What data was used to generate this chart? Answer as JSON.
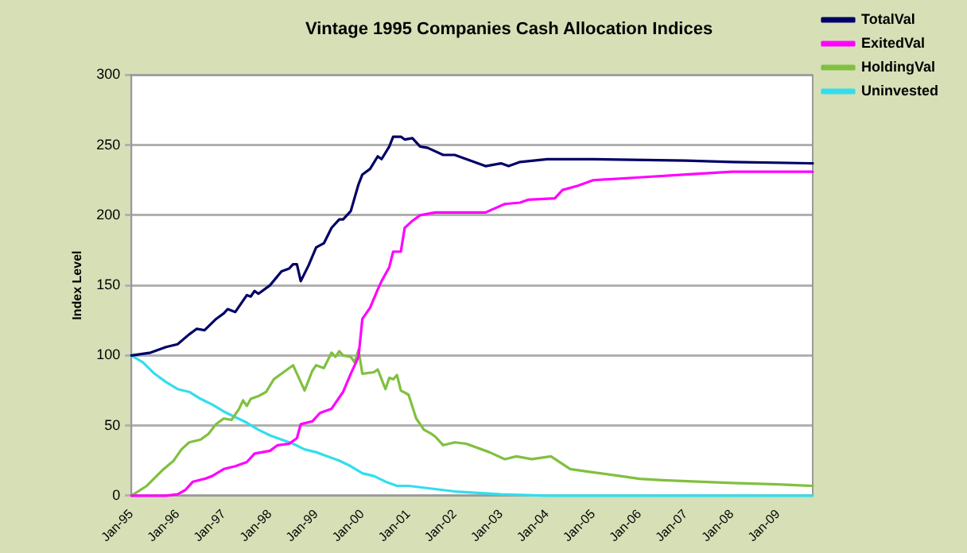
{
  "chart_data": {
    "type": "line",
    "title": "Vintage 1995 Companies Cash Allocation Indices",
    "ylabel": "Index Level",
    "ylim": [
      0,
      300
    ],
    "yticks": [
      0,
      50,
      100,
      150,
      200,
      250,
      300
    ],
    "xlim": [
      "1995-01",
      "2009-10"
    ],
    "xticks": [
      {
        "value": "1995-01",
        "label": "Jan-95"
      },
      {
        "value": "1996-01",
        "label": "Jan-96"
      },
      {
        "value": "1997-01",
        "label": "Jan-97"
      },
      {
        "value": "1998-01",
        "label": "Jan-98"
      },
      {
        "value": "1999-01",
        "label": "Jan-99"
      },
      {
        "value": "2000-01",
        "label": "Jan-00"
      },
      {
        "value": "2001-01",
        "label": "Jan-01"
      },
      {
        "value": "2002-01",
        "label": "Jan-02"
      },
      {
        "value": "2003-01",
        "label": "Jan-03"
      },
      {
        "value": "2004-01",
        "label": "Jan-04"
      },
      {
        "value": "2005-01",
        "label": "Jan-05"
      },
      {
        "value": "2006-01",
        "label": "Jan-06"
      },
      {
        "value": "2007-01",
        "label": "Jan-07"
      },
      {
        "value": "2008-01",
        "label": "Jan-08"
      },
      {
        "value": "2009-01",
        "label": "Jan-09"
      }
    ],
    "grid": "y",
    "legend": "right",
    "marker": "none",
    "line_style": "solid",
    "series": [
      {
        "name": "TotalVal",
        "color": "#000066",
        "x": [
          "1995-01",
          "1995-06",
          "1995-10",
          "1996-01",
          "1996-04",
          "1996-06",
          "1996-08",
          "1996-11",
          "1997-01",
          "1997-02",
          "1997-04",
          "1997-07",
          "1997-08",
          "1997-09",
          "1997-10",
          "1998-01",
          "1998-04",
          "1998-06",
          "1998-07",
          "1998-08",
          "1998-09",
          "1998-11",
          "1999-01",
          "1999-03",
          "1999-05",
          "1999-07",
          "1999-08",
          "1999-10",
          "1999-12",
          "2000-01",
          "2000-03",
          "2000-05",
          "2000-06",
          "2000-08",
          "2000-09",
          "2000-11",
          "2000-12",
          "2001-02",
          "2001-04",
          "2001-06",
          "2001-10",
          "2002-01",
          "2002-04",
          "2002-09",
          "2003-01",
          "2003-03",
          "2003-06",
          "2004-01",
          "2005-01",
          "2007-01",
          "2008-01",
          "2009-10"
        ],
        "values": [
          100,
          102,
          106,
          108,
          115,
          119,
          118,
          126,
          130,
          133,
          131,
          143,
          142,
          146,
          144,
          150,
          160,
          162,
          165,
          165,
          153,
          164,
          177,
          180,
          191,
          197,
          197,
          203,
          222,
          229,
          233,
          242,
          240,
          249,
          256,
          256,
          254,
          255,
          249,
          248,
          243,
          243,
          240,
          235,
          237,
          235,
          238,
          240,
          240,
          239,
          238,
          237
        ]
      },
      {
        "name": "ExitedVal",
        "color": "#ff00ff",
        "x": [
          "1995-01",
          "1995-10",
          "1996-01",
          "1996-03",
          "1996-05",
          "1996-08",
          "1996-10",
          "1997-01",
          "1997-04",
          "1997-07",
          "1997-09",
          "1998-01",
          "1998-03",
          "1998-06",
          "1998-08",
          "1998-09",
          "1998-12",
          "1999-02",
          "1999-05",
          "1999-08",
          "1999-10",
          "1999-12",
          "2000-01",
          "2000-03",
          "2000-05",
          "2000-06",
          "2000-08",
          "2000-09",
          "2000-11",
          "2000-12",
          "2001-02",
          "2001-04",
          "2001-08",
          "2002-01",
          "2002-09",
          "2003-02",
          "2003-06",
          "2003-08",
          "2004-03",
          "2004-05",
          "2004-09",
          "2005-01",
          "2006-01",
          "2007-01",
          "2008-01",
          "2009-10"
        ],
        "values": [
          0,
          0,
          1,
          4,
          10,
          12,
          14,
          19,
          21,
          24,
          30,
          32,
          36,
          37,
          41,
          51,
          53,
          59,
          62,
          74,
          87,
          99,
          126,
          134,
          147,
          153,
          163,
          174,
          174,
          191,
          196,
          200,
          202,
          202,
          202,
          208,
          209,
          211,
          212,
          218,
          221,
          225,
          227,
          229,
          231,
          231
        ]
      },
      {
        "name": "HoldingVal",
        "color": "#80c040",
        "x": [
          "1995-01",
          "1995-05",
          "1995-09",
          "1995-12",
          "1996-02",
          "1996-04",
          "1996-07",
          "1996-09",
          "1996-11",
          "1997-01",
          "1997-03",
          "1997-05",
          "1997-06",
          "1997-07",
          "1997-08",
          "1997-10",
          "1997-12",
          "1998-02",
          "1998-04",
          "1998-06",
          "1998-07",
          "1998-09",
          "1998-10",
          "1998-12",
          "1999-01",
          "1999-03",
          "1999-05",
          "1999-06",
          "1999-07",
          "1999-08",
          "1999-10",
          "1999-11",
          "1999-12",
          "2000-01",
          "2000-04",
          "2000-05",
          "2000-07",
          "2000-08",
          "2000-09",
          "2000-10",
          "2000-11",
          "2001-01",
          "2001-03",
          "2001-05",
          "2001-07",
          "2001-08",
          "2001-10",
          "2002-01",
          "2002-04",
          "2002-10",
          "2003-02",
          "2003-05",
          "2003-09",
          "2004-02",
          "2004-07",
          "2004-12",
          "2005-08",
          "2006-01",
          "2006-07",
          "2007-04",
          "2008-01",
          "2009-01",
          "2009-10"
        ],
        "values": [
          0,
          7,
          18,
          25,
          33,
          38,
          40,
          44,
          51,
          55,
          54,
          62,
          68,
          64,
          69,
          71,
          74,
          83,
          87,
          91,
          93,
          81,
          75,
          89,
          93,
          91,
          102,
          99,
          103,
          100,
          99,
          95,
          104,
          87,
          88,
          90,
          76,
          84,
          83,
          86,
          75,
          72,
          55,
          47,
          44,
          42,
          36,
          38,
          37,
          31,
          26,
          28,
          26,
          28,
          19,
          17,
          14,
          12,
          11,
          10,
          9,
          8,
          7
        ]
      },
      {
        "name": "Uninvested",
        "color": "#33ddee",
        "x": [
          "1995-01",
          "1995-04",
          "1995-07",
          "1995-10",
          "1996-01",
          "1996-04",
          "1996-07",
          "1996-10",
          "1997-01",
          "1997-04",
          "1997-07",
          "1997-10",
          "1998-01",
          "1998-04",
          "1998-07",
          "1998-10",
          "1999-01",
          "1999-04",
          "1999-07",
          "1999-10",
          "2000-01",
          "2000-04",
          "2000-07",
          "2000-10",
          "2001-01",
          "2001-07",
          "2002-01",
          "2002-07",
          "2003-01",
          "2004-01",
          "2009-10"
        ],
        "values": [
          100,
          95,
          87,
          81,
          76,
          74,
          69,
          65,
          60,
          56,
          52,
          47,
          43,
          40,
          37,
          33,
          31,
          28,
          25,
          21,
          16,
          14,
          10,
          7,
          7,
          5,
          3,
          2,
          1,
          0,
          0
        ]
      }
    ]
  }
}
